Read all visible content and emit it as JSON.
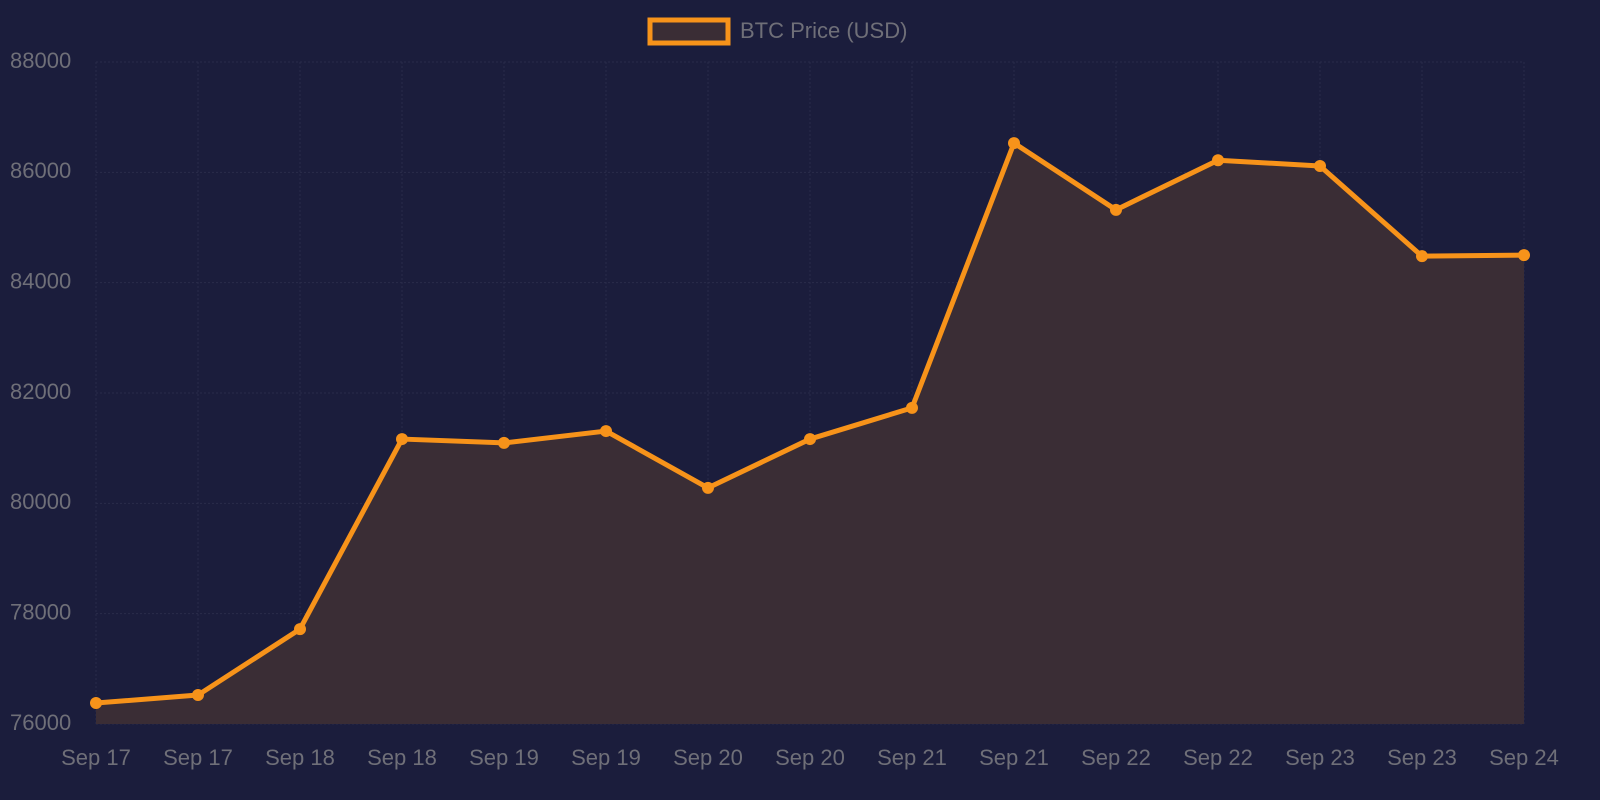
{
  "chart_data": {
    "type": "line",
    "categories": [
      "Sep 17",
      "Sep 17",
      "Sep 18",
      "Sep 18",
      "Sep 19",
      "Sep 19",
      "Sep 20",
      "Sep 20",
      "Sep 21",
      "Sep 21",
      "Sep 22",
      "Sep 22",
      "Sep 23",
      "Sep 23",
      "Sep 24"
    ],
    "series": [
      {
        "name": "BTC Price (USD)",
        "color": "#f7931a",
        "fill_color": "#3a2d35",
        "values": [
          76380,
          76525,
          77720,
          81165,
          81095,
          81310,
          80280,
          81165,
          81730,
          86530,
          85320,
          86220,
          86115,
          84480,
          84500
        ]
      }
    ],
    "ylim": [
      76000,
      88000
    ],
    "yticks": [
      76000,
      78000,
      80000,
      82000,
      84000,
      86000,
      88000
    ],
    "grid": true,
    "legend": "top"
  }
}
